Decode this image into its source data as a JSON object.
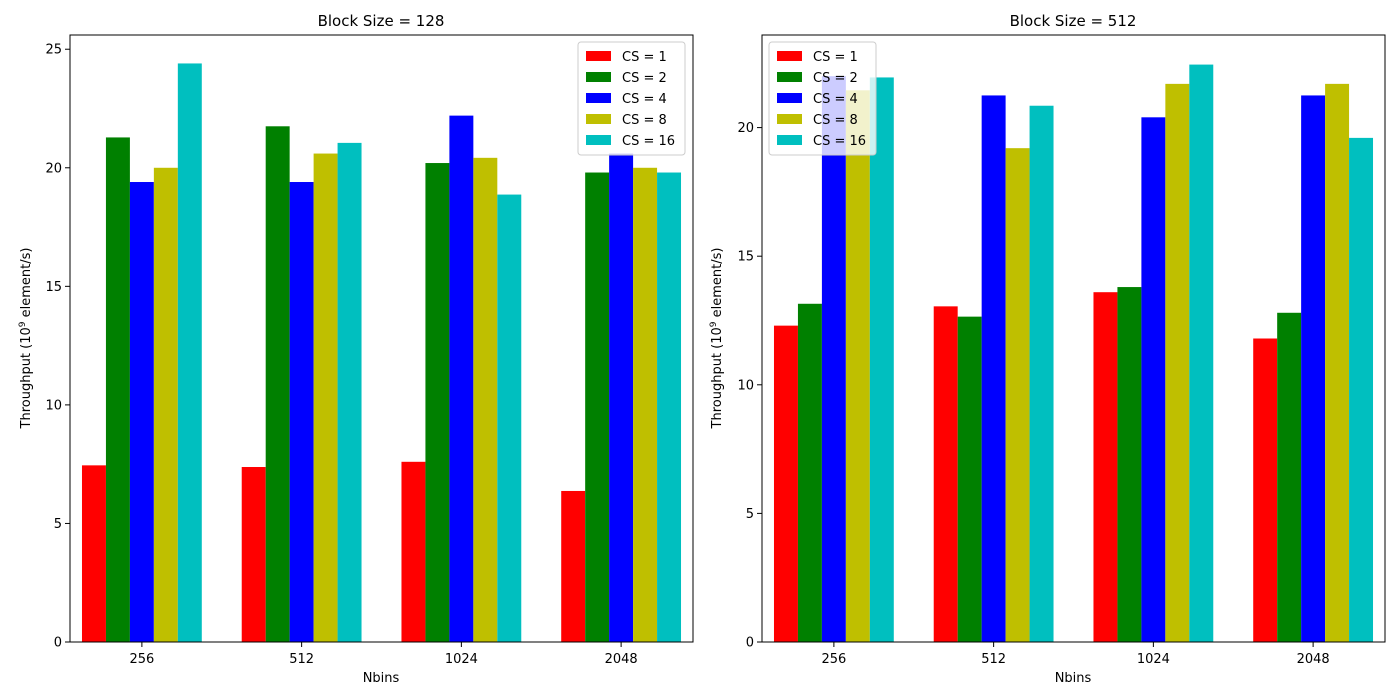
{
  "chart_data": [
    {
      "type": "bar",
      "title": "Block Size = 128",
      "xlabel": "Nbins",
      "ylabel": "Throughput (10^9 element/s)",
      "ylabel_main": "Throughput (10",
      "ylabel_exp": "9",
      "ylabel_tail": " element/s)",
      "categories": [
        "256",
        "512",
        "1024",
        "2048"
      ],
      "ylim": [
        0,
        25.6
      ],
      "yticks": [
        0,
        5,
        10,
        15,
        20,
        25
      ],
      "grid": false,
      "legend_position": "upper right",
      "series": [
        {
          "name": "CS = 1",
          "color": "#ff0000",
          "values": [
            7.45,
            7.38,
            7.6,
            6.37
          ]
        },
        {
          "name": "CS = 2",
          "color": "#008000",
          "values": [
            21.28,
            21.75,
            20.2,
            19.8
          ]
        },
        {
          "name": "CS = 4",
          "color": "#0000ff",
          "values": [
            19.4,
            19.4,
            22.2,
            20.6
          ]
        },
        {
          "name": "CS = 8",
          "color": "#bfbf00",
          "values": [
            20.0,
            20.6,
            20.42,
            20.0
          ]
        },
        {
          "name": "CS = 16",
          "color": "#00bfbf",
          "values": [
            24.4,
            21.05,
            18.87,
            19.8
          ]
        }
      ]
    },
    {
      "type": "bar",
      "title": "Block Size = 512",
      "xlabel": "Nbins",
      "ylabel": "Throughput (10^9 element/s)",
      "ylabel_main": "Throughput (10",
      "ylabel_exp": "9",
      "ylabel_tail": " element/s)",
      "categories": [
        "256",
        "512",
        "1024",
        "2048"
      ],
      "ylim": [
        0,
        23.6
      ],
      "yticks": [
        0,
        5,
        10,
        15,
        20
      ],
      "grid": false,
      "legend_position": "upper left",
      "series": [
        {
          "name": "CS = 1",
          "color": "#ff0000",
          "values": [
            12.3,
            13.05,
            13.6,
            11.8
          ]
        },
        {
          "name": "CS = 2",
          "color": "#008000",
          "values": [
            13.15,
            12.65,
            13.8,
            12.8
          ]
        },
        {
          "name": "CS = 4",
          "color": "#0000ff",
          "values": [
            22.0,
            21.25,
            20.4,
            21.25
          ]
        },
        {
          "name": "CS = 8",
          "color": "#bfbf00",
          "values": [
            21.45,
            19.2,
            21.7,
            21.7
          ]
        },
        {
          "name": "CS = 16",
          "color": "#00bfbf",
          "values": [
            21.95,
            20.85,
            22.45,
            19.6
          ]
        }
      ]
    }
  ]
}
